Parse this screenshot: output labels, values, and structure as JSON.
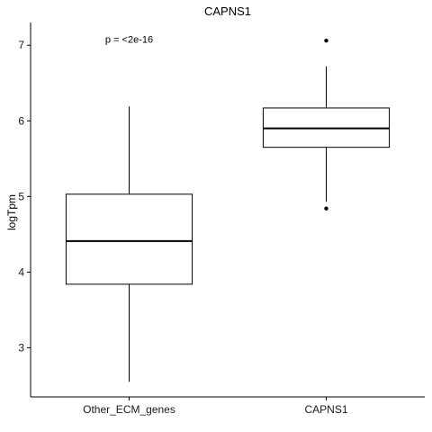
{
  "chart_data": {
    "type": "box",
    "title": "CAPNS1",
    "xlabel": "",
    "ylabel": "logTpm",
    "ylim": [
      2.35,
      7.3
    ],
    "yticks": [
      3,
      4,
      5,
      6,
      7
    ],
    "categories": [
      "Other_ECM_genes",
      "CAPNS1"
    ],
    "boxes": [
      {
        "category": "Other_ECM_genes",
        "whisker_low": 2.55,
        "q1": 3.84,
        "median": 4.41,
        "q3": 5.03,
        "whisker_high": 6.19,
        "outliers": []
      },
      {
        "category": "CAPNS1",
        "whisker_low": 4.93,
        "q1": 5.65,
        "median": 5.9,
        "q3": 6.17,
        "whisker_high": 6.72,
        "outliers": [
          4.84,
          7.06
        ]
      }
    ],
    "annotation": {
      "text": "p = <2e-16",
      "x_category": "Other_ECM_genes",
      "y": 7.08
    },
    "grid": false,
    "legend": "none"
  }
}
